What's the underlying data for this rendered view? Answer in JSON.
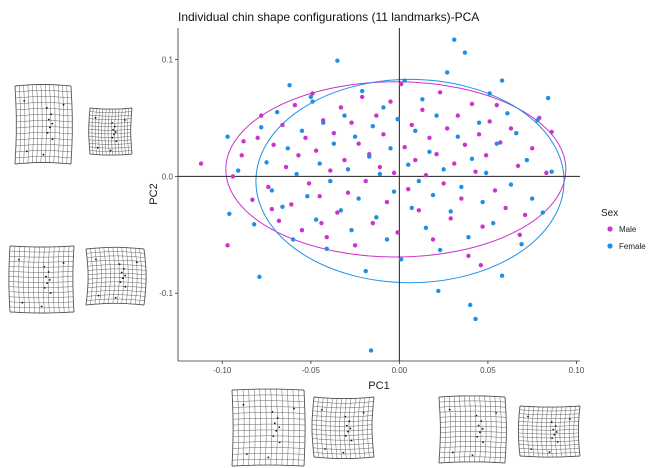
{
  "chart_data": {
    "type": "scatter",
    "title": "Individual chin shape configurations (11 landmarks)-PCA",
    "xlabel": "PC1",
    "ylabel": "PC2",
    "xlim": [
      -0.125,
      0.102
    ],
    "ylim": [
      -0.158,
      0.127
    ],
    "xticks": [
      -0.1,
      -0.05,
      0.0,
      0.05,
      0.1
    ],
    "xtick_labels": [
      "-0.10",
      "-0.05",
      "0.00",
      "0.05",
      "0.10"
    ],
    "yticks": [
      -0.1,
      0.0,
      0.1
    ],
    "ytick_labels": [
      "-0.1",
      "0.0",
      "0.1"
    ],
    "zero_lines": true,
    "grid": false,
    "legend": {
      "title": "Sex",
      "position": "right"
    },
    "series": [
      {
        "name": "Male",
        "color": "#cc33cc",
        "ellipse": {
          "cx": -0.002,
          "cy": 0.006,
          "rx": 0.096,
          "ry": 0.075
        },
        "points": [
          [
            -0.112,
            0.011
          ],
          [
            -0.097,
            -0.059
          ],
          [
            -0.094,
            0.0
          ],
          [
            -0.089,
            0.018
          ],
          [
            -0.083,
            -0.02
          ],
          [
            -0.08,
            0.033
          ],
          [
            -0.078,
            0.052
          ],
          [
            -0.074,
            -0.009
          ],
          [
            -0.071,
            0.027
          ],
          [
            -0.068,
            -0.038
          ],
          [
            -0.066,
            0.044
          ],
          [
            -0.064,
            0.008
          ],
          [
            -0.061,
            -0.024
          ],
          [
            -0.059,
            0.061
          ],
          [
            -0.057,
            0.018
          ],
          [
            -0.055,
            -0.046
          ],
          [
            -0.053,
            0.033
          ],
          [
            -0.051,
            -0.006
          ],
          [
            -0.049,
            0.071
          ],
          [
            -0.047,
            0.022
          ],
          [
            -0.045,
            -0.017
          ],
          [
            -0.043,
            0.048
          ],
          [
            -0.041,
            -0.052
          ],
          [
            -0.039,
            0.005
          ],
          [
            -0.037,
            0.037
          ],
          [
            -0.035,
            -0.031
          ],
          [
            -0.033,
            0.059
          ],
          [
            -0.031,
            0.014
          ],
          [
            -0.029,
            -0.014
          ],
          [
            -0.027,
            0.046
          ],
          [
            -0.025,
            -0.059
          ],
          [
            -0.023,
            0.028
          ],
          [
            -0.021,
            0.068
          ],
          [
            -0.019,
            -0.004
          ],
          [
            -0.017,
            0.019
          ],
          [
            -0.015,
            -0.04
          ],
          [
            -0.013,
            0.052
          ],
          [
            -0.011,
            0.008
          ],
          [
            -0.009,
            0.036
          ],
          [
            -0.007,
            -0.022
          ],
          [
            -0.005,
            0.064
          ],
          [
            -0.003,
            0.003
          ],
          [
            -0.001,
            -0.048
          ],
          [
            0.001,
            0.079
          ],
          [
            0.003,
            0.025
          ],
          [
            0.005,
            -0.011
          ],
          [
            0.007,
            0.044
          ],
          [
            0.009,
            0.014
          ],
          [
            0.011,
            -0.029
          ],
          [
            0.013,
            0.057
          ],
          [
            0.015,
            0.001
          ],
          [
            0.017,
            0.033
          ],
          [
            0.019,
            -0.054
          ],
          [
            0.021,
            0.019
          ],
          [
            0.023,
            0.072
          ],
          [
            0.025,
            -0.006
          ],
          [
            0.027,
            0.041
          ],
          [
            0.029,
            -0.036
          ],
          [
            0.031,
            0.011
          ],
          [
            0.033,
            0.052
          ],
          [
            0.035,
            -0.019
          ],
          [
            0.037,
            0.027
          ],
          [
            0.039,
            -0.068
          ],
          [
            0.041,
            0.062
          ],
          [
            0.043,
            0.004
          ],
          [
            0.045,
            0.036
          ],
          [
            0.047,
            -0.043
          ],
          [
            0.049,
            0.018
          ],
          [
            0.051,
            0.047
          ],
          [
            0.054,
            -0.012
          ],
          [
            0.057,
            0.029
          ],
          [
            0.06,
            -0.027
          ],
          [
            0.063,
            0.041
          ],
          [
            0.067,
            0.009
          ],
          [
            0.071,
            -0.033
          ],
          [
            0.075,
            0.024
          ],
          [
            0.079,
            0.05
          ],
          [
            0.083,
            0.003
          ],
          [
            0.086,
            0.038
          ],
          [
            0.046,
            -0.076
          ],
          [
            -0.072,
            -0.028
          ],
          [
            0.055,
            0.061
          ],
          [
            -0.088,
            0.03
          ],
          [
            -0.044,
            -0.04
          ],
          [
            0.068,
            -0.05
          ]
        ]
      },
      {
        "name": "Female",
        "color": "#1f8fe5",
        "ellipse": {
          "cx": 0.006,
          "cy": -0.004,
          "rx": 0.087,
          "ry": 0.087
        },
        "points": [
          [
            -0.097,
            0.034
          ],
          [
            -0.096,
            -0.032
          ],
          [
            -0.091,
            0.005
          ],
          [
            -0.082,
            -0.041
          ],
          [
            -0.079,
            -0.086
          ],
          [
            -0.078,
            0.042
          ],
          [
            -0.075,
            0.012
          ],
          [
            -0.072,
            -0.012
          ],
          [
            -0.069,
            0.055
          ],
          [
            -0.066,
            -0.026
          ],
          [
            -0.063,
            0.024
          ],
          [
            -0.06,
            -0.054
          ],
          [
            -0.058,
            0.002
          ],
          [
            -0.055,
            0.039
          ],
          [
            -0.052,
            -0.017
          ],
          [
            -0.049,
            0.064
          ],
          [
            -0.047,
            -0.037
          ],
          [
            -0.045,
            0.011
          ],
          [
            -0.043,
            0.046
          ],
          [
            -0.041,
            -0.062
          ],
          [
            -0.039,
            -0.004
          ],
          [
            -0.037,
            0.028
          ],
          [
            -0.035,
            0.099
          ],
          [
            -0.033,
            -0.029
          ],
          [
            -0.031,
            0.052
          ],
          [
            -0.029,
            0.006
          ],
          [
            -0.027,
            -0.046
          ],
          [
            -0.025,
            0.034
          ],
          [
            -0.023,
            -0.019
          ],
          [
            -0.021,
            0.073
          ],
          [
            -0.019,
            -0.081
          ],
          [
            -0.017,
            0.017
          ],
          [
            -0.016,
            -0.149
          ],
          [
            -0.015,
            0.043
          ],
          [
            -0.013,
            -0.035
          ],
          [
            -0.011,
            0.002
          ],
          [
            -0.009,
            0.059
          ],
          [
            -0.007,
            -0.054
          ],
          [
            -0.005,
            0.024
          ],
          [
            -0.003,
            -0.013
          ],
          [
            -0.001,
            0.049
          ],
          [
            0.001,
            -0.071
          ],
          [
            0.003,
            0.082
          ],
          [
            0.005,
            0.01
          ],
          [
            0.007,
            -0.027
          ],
          [
            0.009,
            0.039
          ],
          [
            0.011,
            -0.004
          ],
          [
            0.013,
            0.066
          ],
          [
            0.015,
            -0.044
          ],
          [
            0.017,
            0.021
          ],
          [
            0.019,
            -0.016
          ],
          [
            0.021,
            0.052
          ],
          [
            0.023,
            -0.063
          ],
          [
            0.025,
            0.006
          ],
          [
            0.027,
            0.089
          ],
          [
            0.029,
            -0.03
          ],
          [
            0.031,
            0.117
          ],
          [
            0.033,
            0.034
          ],
          [
            0.035,
            -0.009
          ],
          [
            0.037,
            0.106
          ],
          [
            0.039,
            -0.052
          ],
          [
            0.041,
            0.015
          ],
          [
            0.043,
            -0.122
          ],
          [
            0.045,
            0.046
          ],
          [
            0.047,
            -0.022
          ],
          [
            0.049,
            0.003
          ],
          [
            0.051,
            0.071
          ],
          [
            0.053,
            -0.04
          ],
          [
            0.055,
            0.028
          ],
          [
            0.058,
            -0.085
          ],
          [
            0.061,
            0.054
          ],
          [
            0.063,
            -0.007
          ],
          [
            0.066,
            0.037
          ],
          [
            0.069,
            -0.058
          ],
          [
            0.072,
            0.014
          ],
          [
            0.075,
            -0.019
          ],
          [
            0.078,
            0.048
          ],
          [
            0.081,
            -0.031
          ],
          [
            0.084,
            0.067
          ],
          [
            0.086,
            0.004
          ],
          [
            0.04,
            -0.11
          ],
          [
            -0.062,
            0.078
          ],
          [
            0.022,
            -0.098
          ],
          [
            0.058,
            0.082
          ],
          [
            -0.05,
            0.068
          ]
        ]
      }
    ]
  },
  "insets": [
    {
      "id": "left-top-a"
    },
    {
      "id": "left-top-b"
    },
    {
      "id": "left-bottom-a"
    },
    {
      "id": "left-bottom-b"
    },
    {
      "id": "bottom-1"
    },
    {
      "id": "bottom-2"
    },
    {
      "id": "bottom-3"
    },
    {
      "id": "bottom-4"
    }
  ]
}
